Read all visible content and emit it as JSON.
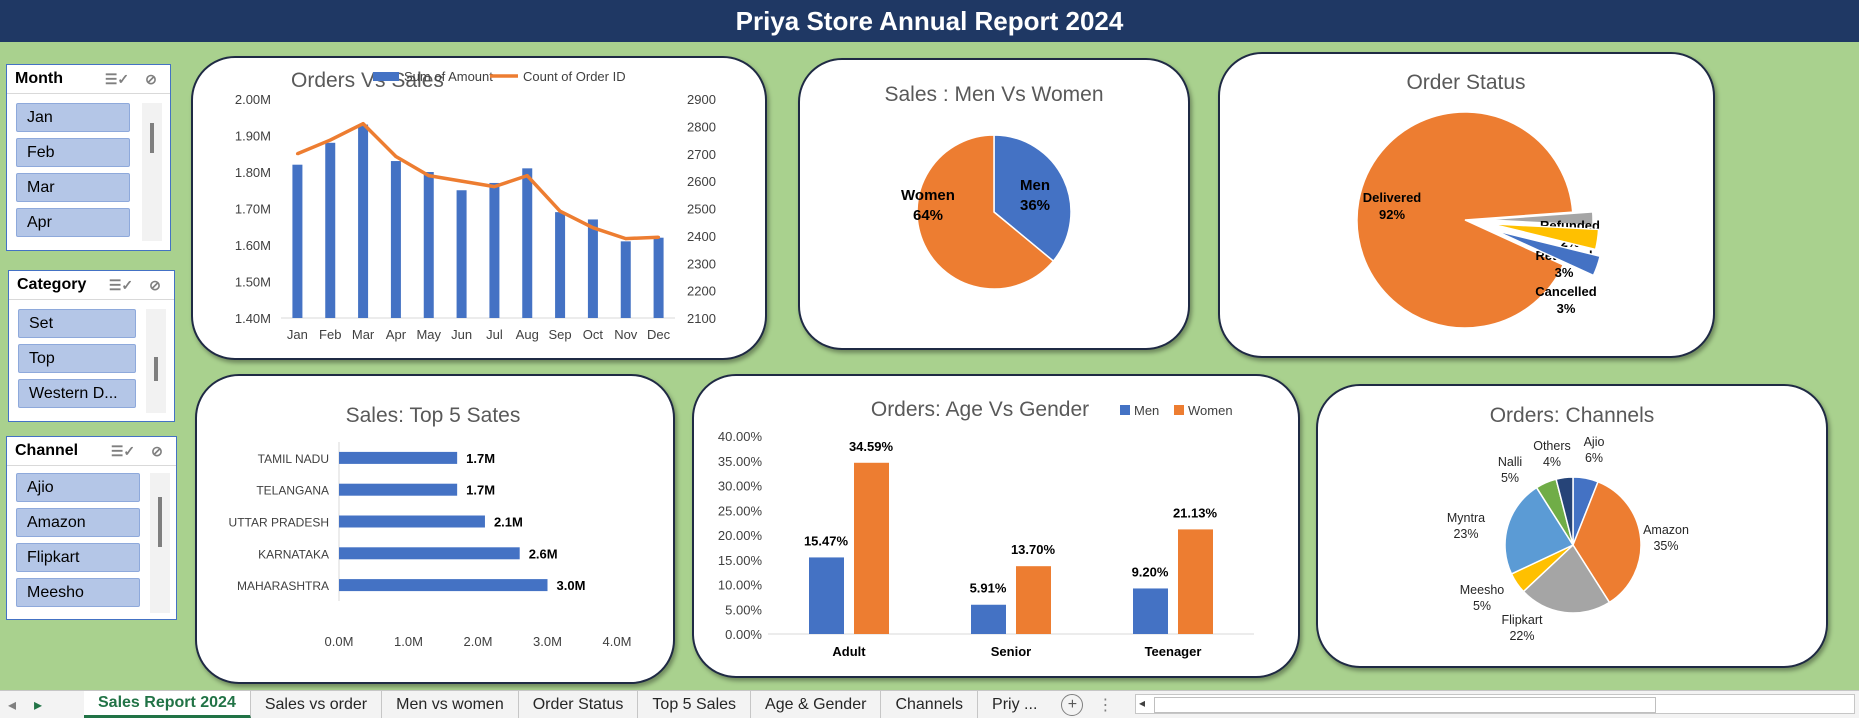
{
  "title": "Priya Store Annual Report 2024",
  "colors": {
    "blue": "#4472c4",
    "orange": "#ed7d31",
    "gray": "#a5a5a5",
    "yellow": "#ffc000",
    "lightblue": "#5b9bd5",
    "green": "#70ad47",
    "navy": "#264478"
  },
  "slicers": {
    "month": {
      "title": "Month",
      "items": [
        "Jan",
        "Feb",
        "Mar",
        "Apr"
      ]
    },
    "category": {
      "title": "Category",
      "items": [
        "Set",
        "Top",
        "Western D..."
      ]
    },
    "channel": {
      "title": "Channel",
      "items": [
        "Ajio",
        "Amazon",
        "Flipkart",
        "Meesho"
      ]
    }
  },
  "tabs": [
    "Sales Report 2024",
    "Sales vs order",
    "Men vs women",
    "Order Status",
    "Top 5 Sales",
    "Age & Gender",
    "Channels",
    "Priy ..."
  ],
  "active_tab": "Sales Report 2024",
  "chart_data": [
    {
      "type": "bar",
      "title": "Orders Vs Sales",
      "categories": [
        "Jan",
        "Feb",
        "Mar",
        "Apr",
        "May",
        "Jun",
        "Jul",
        "Aug",
        "Sep",
        "Oct",
        "Nov",
        "Dec"
      ],
      "series": [
        {
          "name": "Sum of Amount",
          "type": "bar",
          "axis": "left",
          "values": [
            1.82,
            1.88,
            1.93,
            1.83,
            1.8,
            1.75,
            1.77,
            1.81,
            1.69,
            1.67,
            1.61,
            1.62
          ]
        },
        {
          "name": "Count of Order ID",
          "type": "line",
          "axis": "right",
          "values": [
            2700,
            2750,
            2810,
            2690,
            2620,
            2600,
            2580,
            2620,
            2490,
            2430,
            2390,
            2395
          ]
        }
      ],
      "y_left": {
        "ticks": [
          "2.00M",
          "1.90M",
          "1.80M",
          "1.70M",
          "1.60M",
          "1.50M",
          "1.40M"
        ],
        "ylim": [
          1.4,
          2.0
        ]
      },
      "y_right": {
        "ticks": [
          "2900",
          "2800",
          "2700",
          "2600",
          "2500",
          "2400",
          "2300",
          "2200",
          "2100"
        ],
        "ylim": [
          2100,
          2900
        ]
      },
      "legend": "top"
    },
    {
      "type": "pie",
      "title": "Sales : Men Vs Women",
      "slices": [
        {
          "name": "Men",
          "value": 36,
          "label": "36%"
        },
        {
          "name": "Women",
          "value": 64,
          "label": "64%"
        }
      ]
    },
    {
      "type": "pie",
      "title": "Order Status",
      "slices": [
        {
          "name": "Delivered",
          "value": 92,
          "label": "92%"
        },
        {
          "name": "Refunded",
          "value": 2,
          "label": "2%"
        },
        {
          "name": "Returned",
          "value": 3,
          "label": "3%"
        },
        {
          "name": "Cancelled",
          "value": 3,
          "label": "3%"
        }
      ]
    },
    {
      "type": "bar",
      "orientation": "horizontal",
      "title": "Sales: Top 5 Sates",
      "categories": [
        "TAMIL NADU",
        "TELANGANA",
        "UTTAR PRADESH",
        "KARNATAKA",
        "MAHARASHTRA"
      ],
      "values": [
        1.7,
        1.7,
        2.1,
        2.6,
        3.0
      ],
      "value_labels": [
        "1.7M",
        "1.7M",
        "2.1M",
        "2.6M",
        "3.0M"
      ],
      "x_ticks": [
        "0.0M",
        "1.0M",
        "2.0M",
        "3.0M",
        "4.0M"
      ],
      "xlim": [
        0,
        4.0
      ]
    },
    {
      "type": "bar",
      "title": "Orders: Age Vs Gender",
      "categories": [
        "Adult",
        "Senior",
        "Teenager"
      ],
      "series": [
        {
          "name": "Men",
          "values": [
            15.47,
            5.91,
            9.2
          ],
          "labels": [
            "15.47%",
            "5.91%",
            "9.20%"
          ]
        },
        {
          "name": "Women",
          "values": [
            34.59,
            13.7,
            21.13
          ],
          "labels": [
            "34.59%",
            "13.70%",
            "21.13%"
          ]
        }
      ],
      "y_ticks": [
        "40.00%",
        "35.00%",
        "30.00%",
        "25.00%",
        "20.00%",
        "15.00%",
        "10.00%",
        "5.00%",
        "0.00%"
      ],
      "ylim": [
        0,
        40
      ],
      "legend": "top-right"
    },
    {
      "type": "pie",
      "title": "Orders: Channels",
      "slices": [
        {
          "name": "Ajio",
          "value": 6,
          "label": "6%"
        },
        {
          "name": "Amazon",
          "value": 35,
          "label": "35%"
        },
        {
          "name": "Flipkart",
          "value": 22,
          "label": "22%"
        },
        {
          "name": "Meesho",
          "value": 5,
          "label": "5%"
        },
        {
          "name": "Myntra",
          "value": 23,
          "label": "23%"
        },
        {
          "name": "Nalli",
          "value": 5,
          "label": "5%"
        },
        {
          "name": "Others",
          "value": 4,
          "label": "4%"
        }
      ]
    }
  ]
}
